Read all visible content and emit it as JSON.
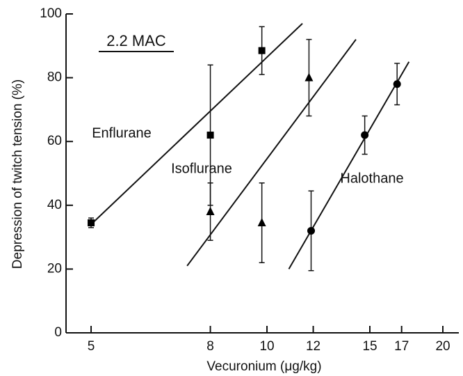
{
  "chart_data": {
    "type": "scatter",
    "annotation": "2.2 MAC",
    "x_label": "Vecuronium (μg/kg)",
    "y_label": "Depression of twitch tension (%)",
    "x_log": true,
    "xlim": [
      4.53,
      21.3
    ],
    "xticks": [
      5,
      8,
      10,
      12,
      15,
      17,
      20
    ],
    "ylim": [
      0,
      100
    ],
    "yticks": [
      0,
      20,
      40,
      60,
      80,
      100
    ],
    "series": [
      {
        "name": "Enflurane",
        "marker": "square",
        "color": "#000000",
        "x": [
          5,
          8,
          9.8
        ],
        "values": [
          34.5,
          62,
          88.5
        ],
        "errors": [
          1.5,
          22,
          7.5
        ],
        "fit": {
          "x": [
            5,
            11.5
          ],
          "y": [
            34,
            97
          ]
        }
      },
      {
        "name": "Isoflurane",
        "marker": "triangle",
        "color": "#000000",
        "x": [
          8,
          9.8,
          11.8
        ],
        "values": [
          38,
          34.5,
          80
        ],
        "errors": [
          9,
          12.5,
          12
        ],
        "fit": {
          "x": [
            7.3,
            14.2
          ],
          "y": [
            21,
            92
          ]
        }
      },
      {
        "name": "Halothane",
        "marker": "circle",
        "color": "#000000",
        "x": [
          11.9,
          14.7,
          16.7
        ],
        "values": [
          32,
          62,
          78
        ],
        "errors": [
          12.5,
          6,
          6.5
        ],
        "fit": {
          "x": [
            10.9,
            17.5
          ],
          "y": [
            20,
            85
          ]
        }
      }
    ]
  }
}
